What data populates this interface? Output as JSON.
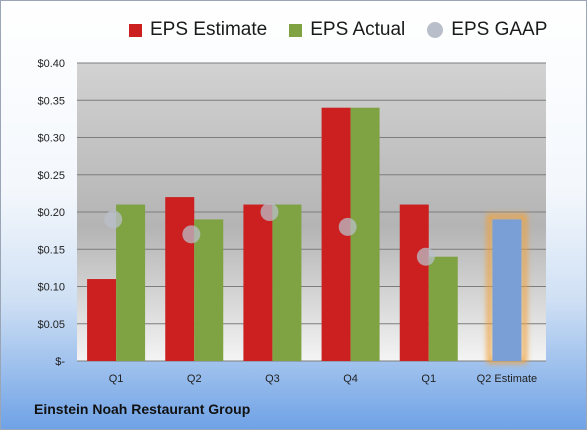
{
  "chart_data": {
    "type": "bar",
    "categories": [
      "Q1",
      "Q2",
      "Q3",
      "Q4",
      "Q1",
      "Q2 Estimate"
    ],
    "series": [
      {
        "name": "EPS Estimate",
        "color": "#cc1f1f",
        "values": [
          0.11,
          0.22,
          0.21,
          0.34,
          0.21,
          null
        ]
      },
      {
        "name": "EPS Actual",
        "color": "#7fa242",
        "values": [
          0.21,
          0.19,
          0.21,
          0.34,
          0.14,
          null
        ]
      },
      {
        "name": "EPS GAAP",
        "color": "#b9bfca",
        "values": [
          0.19,
          0.17,
          0.2,
          0.18,
          0.14,
          null
        ]
      }
    ],
    "estimate_bar": {
      "category": "Q2 Estimate",
      "value": 0.19,
      "color": "#7a9fd6",
      "glow": "#f0a23a"
    },
    "yticks": [
      "$0.40",
      "$0.35",
      "$0.30",
      "$0.25",
      "$0.20",
      "$0.15",
      "$0.10",
      "$0.05",
      "$-"
    ],
    "ylim": [
      0,
      0.4
    ],
    "grid": true,
    "legend_position": "top"
  },
  "footer": {
    "company": "Einstein Noah Restaurant Group"
  }
}
